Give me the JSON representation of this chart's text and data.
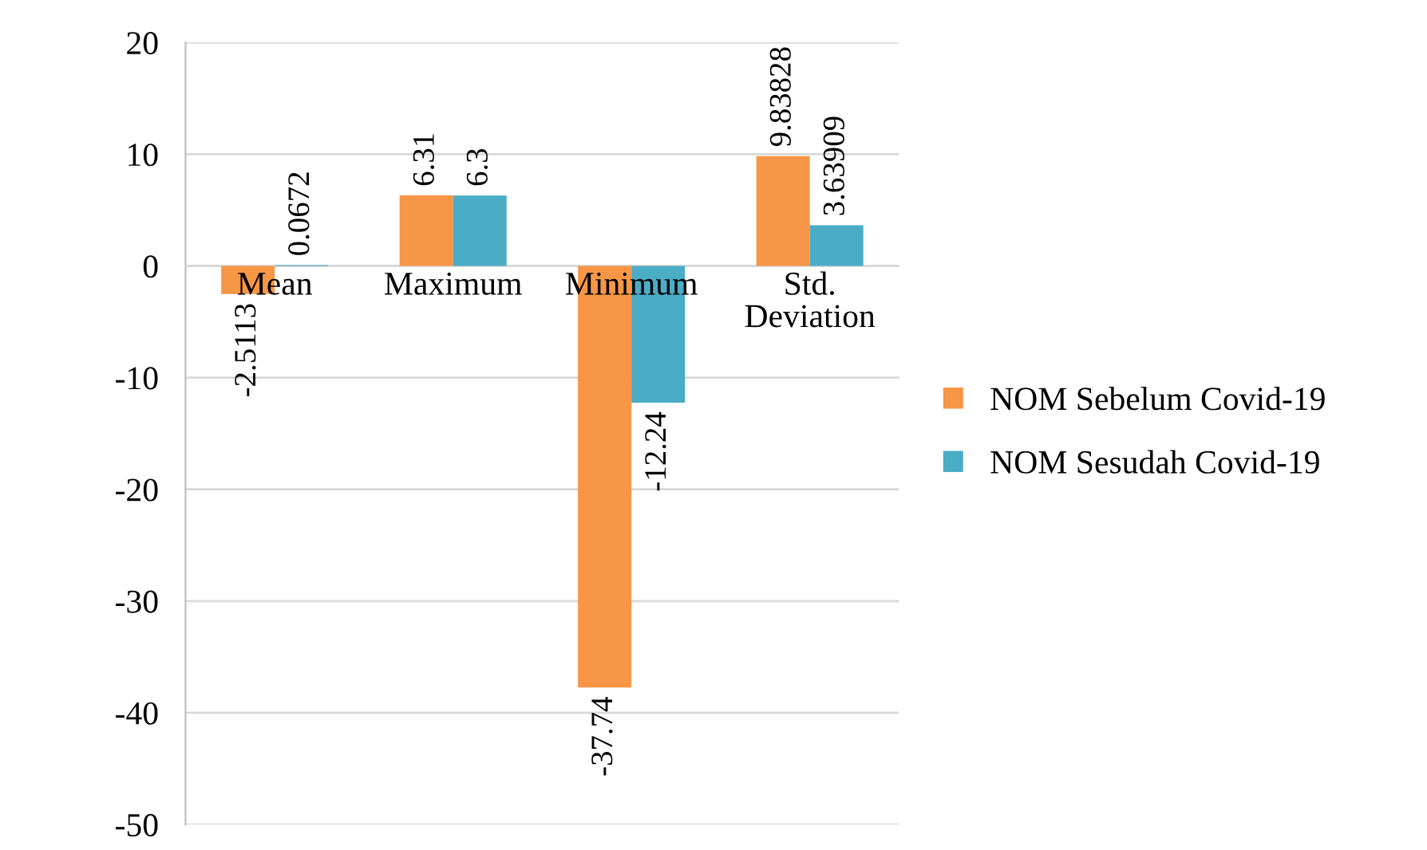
{
  "chart_data": {
    "type": "bar",
    "categories": [
      "Mean",
      "Maximum",
      "Minimum",
      "Std. Deviation"
    ],
    "series": [
      {
        "name": "NOM Sebelum Covid-19",
        "color": "#f79646",
        "values": [
          -2.5113,
          6.31,
          -37.74,
          9.83828
        ]
      },
      {
        "name": "NOM Sesudah Covid-19",
        "color": "#4bacc6",
        "values": [
          0.0672,
          6.3,
          -12.24,
          3.63909
        ]
      }
    ],
    "ylim": [
      -50,
      20
    ],
    "yticks": [
      -50,
      -40,
      -30,
      -20,
      -10,
      0,
      10,
      20
    ],
    "grid": "y",
    "legend": "right",
    "data_labels": true
  }
}
